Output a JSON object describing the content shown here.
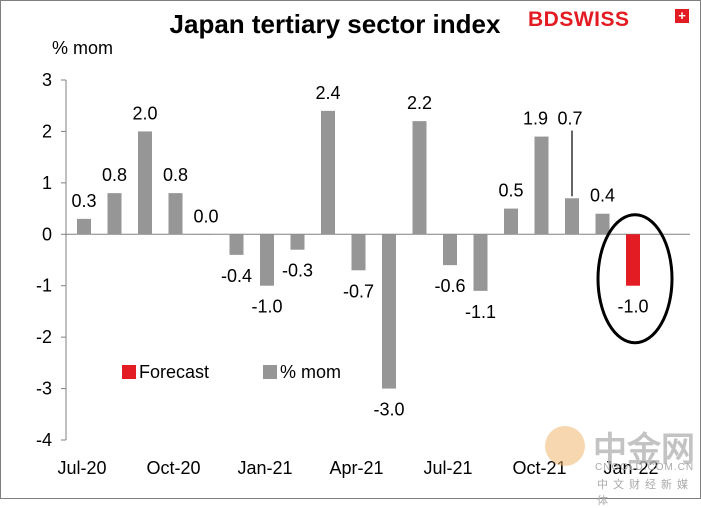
{
  "logo": {
    "text": "BDSWISS",
    "mark": "+"
  },
  "watermark": {
    "title": "中金网",
    "url": "CNGOLD.COM.CN",
    "tagline": "中文财经新媒体"
  },
  "chart_data": {
    "type": "bar",
    "title": "Japan tertiary sector index",
    "ylabel": "% mom",
    "xlabel": "",
    "ylim": [
      -4,
      3
    ],
    "yticks": [
      -4,
      -3,
      -2,
      -1,
      0,
      1,
      2,
      3
    ],
    "x_tick_labels": [
      "Jul-20",
      "Oct-20",
      "Jan-21",
      "Apr-21",
      "Jul-21",
      "Oct-21",
      "Jan-22"
    ],
    "x_tick_indices": [
      0,
      3,
      6,
      9,
      12,
      15,
      18
    ],
    "series": [
      {
        "name": "% mom",
        "color": "#969696",
        "values": [
          0.3,
          0.8,
          2.0,
          0.8,
          0.0,
          -0.4,
          -1.0,
          -0.3,
          2.4,
          -0.7,
          -3.0,
          2.2,
          -0.6,
          -1.1,
          0.5,
          1.9,
          0.7,
          0.4,
          null
        ],
        "labels": [
          "0.3",
          "0.8",
          "2.0",
          "0.8",
          "0.0",
          "-0.4",
          "-1.0",
          "-0.3",
          "2.4",
          "-0.7",
          "-3.0",
          "2.2",
          "-0.6",
          "-1.1",
          "0.5",
          "1.9",
          "0.7",
          "0.4",
          ""
        ]
      },
      {
        "name": "Forecast",
        "color": "#e31b23",
        "values": [
          null,
          null,
          null,
          null,
          null,
          null,
          null,
          null,
          null,
          null,
          null,
          null,
          null,
          null,
          null,
          null,
          null,
          null,
          -1.0
        ],
        "labels": [
          "",
          "",
          "",
          "",
          "",
          "",
          "",
          "",
          "",
          "",
          "",
          "",
          "",
          "",
          "",
          "",
          "",
          "",
          "-1.0"
        ]
      }
    ],
    "legend": [
      "Forecast",
      "% mom"
    ],
    "legend_position": "bottom-left",
    "grid": false,
    "annotation": "ellipse around forecast bar"
  }
}
